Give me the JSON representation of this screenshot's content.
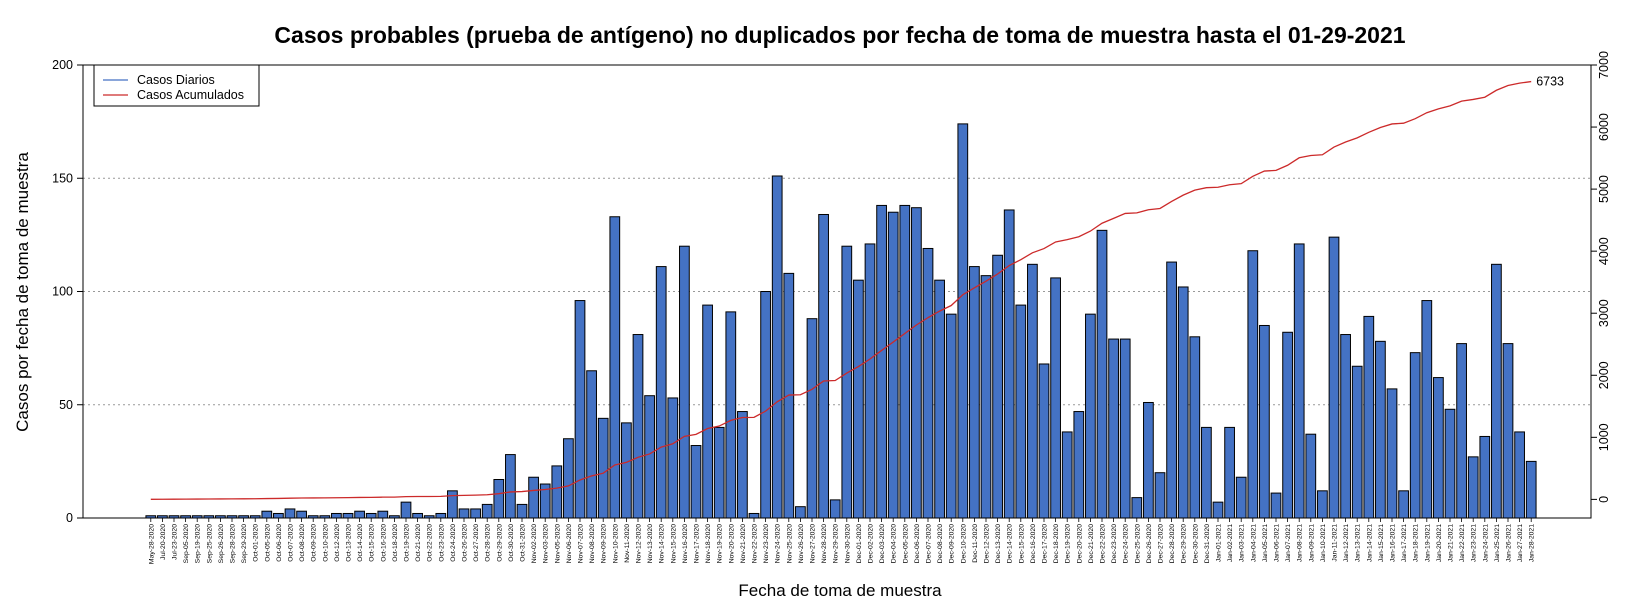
{
  "chart_data": {
    "type": "bar",
    "title": "Casos probables (prueba de antígeno) no duplicados por fecha de toma de muestra hasta el 01-29-2021",
    "xlabel": "Fecha de toma de muestra",
    "ylabel": "Casos por fecha de toma de muestra",
    "ylim": [
      0,
      200
    ],
    "y_ticks": [
      0,
      50,
      100,
      150,
      200
    ],
    "y2lim": [
      -300,
      7000
    ],
    "y2_ticks": [
      0,
      1000,
      2000,
      3000,
      4000,
      5000,
      6000,
      7000
    ],
    "grid": "horizontal dotted",
    "legend_position": "top-left",
    "final_cumulative_label": "6733",
    "categories": [
      "May-28-2020",
      "Jul-20-2020",
      "Jul-23-2020",
      "Sep-05-2020",
      "Sep-19-2020",
      "Sep-25-2020",
      "Sep-26-2020",
      "Sep-28-2020",
      "Sep-29-2020",
      "Oct-01-2020",
      "Oct-05-2020",
      "Oct-06-2020",
      "Oct-07-2020",
      "Oct-08-2020",
      "Oct-09-2020",
      "Oct-10-2020",
      "Oct-12-2020",
      "Oct-13-2020",
      "Oct-14-2020",
      "Oct-15-2020",
      "Oct-16-2020",
      "Oct-18-2020",
      "Oct-19-2020",
      "Oct-21-2020",
      "Oct-22-2020",
      "Oct-23-2020",
      "Oct-24-2020",
      "Oct-26-2020",
      "Oct-27-2020",
      "Oct-28-2020",
      "Oct-29-2020",
      "Oct-30-2020",
      "Oct-31-2020",
      "Nov-02-2020",
      "Nov-03-2020",
      "Nov-05-2020",
      "Nov-06-2020",
      "Nov-07-2020",
      "Nov-08-2020",
      "Nov-09-2020",
      "Nov-10-2020",
      "Nov-11-2020",
      "Nov-12-2020",
      "Nov-13-2020",
      "Nov-14-2020",
      "Nov-15-2020",
      "Nov-16-2020",
      "Nov-17-2020",
      "Nov-18-2020",
      "Nov-19-2020",
      "Nov-20-2020",
      "Nov-21-2020",
      "Nov-22-2020",
      "Nov-23-2020",
      "Nov-24-2020",
      "Nov-25-2020",
      "Nov-26-2020",
      "Nov-27-2020",
      "Nov-28-2020",
      "Nov-29-2020",
      "Nov-30-2020",
      "Dec-01-2020",
      "Dec-02-2020",
      "Dec-03-2020",
      "Dec-04-2020",
      "Dec-05-2020",
      "Dec-06-2020",
      "Dec-07-2020",
      "Dec-08-2020",
      "Dec-09-2020",
      "Dec-10-2020",
      "Dec-11-2020",
      "Dec-12-2020",
      "Dec-13-2020",
      "Dec-14-2020",
      "Dec-15-2020",
      "Dec-16-2020",
      "Dec-17-2020",
      "Dec-18-2020",
      "Dec-19-2020",
      "Dec-20-2020",
      "Dec-21-2020",
      "Dec-22-2020",
      "Dec-23-2020",
      "Dec-24-2020",
      "Dec-25-2020",
      "Dec-26-2020",
      "Dec-27-2020",
      "Dec-28-2020",
      "Dec-29-2020",
      "Dec-30-2020",
      "Dec-31-2020",
      "Jan-01-2021",
      "Jan-02-2021",
      "Jan-03-2021",
      "Jan-04-2021",
      "Jan-05-2021",
      "Jan-06-2021",
      "Jan-07-2021",
      "Jan-08-2021",
      "Jan-09-2021",
      "Jan-10-2021",
      "Jan-11-2021",
      "Jan-12-2021",
      "Jan-13-2021",
      "Jan-14-2021",
      "Jan-15-2021",
      "Jan-16-2021",
      "Jan-17-2021",
      "Jan-18-2021",
      "Jan-19-2021",
      "Jan-20-2021",
      "Jan-21-2021",
      "Jan-22-2021",
      "Jan-23-2021",
      "Jan-24-2021",
      "Jan-25-2021",
      "Jan-26-2021",
      "Jan-27-2021",
      "Jan-28-2021"
    ],
    "series": [
      {
        "name": "Casos Diarios",
        "color": "#4472c4",
        "values": [
          1,
          1,
          1,
          1,
          1,
          1,
          1,
          1,
          1,
          1,
          3,
          2,
          4,
          3,
          1,
          1,
          2,
          2,
          3,
          2,
          3,
          1,
          7,
          2,
          1,
          2,
          12,
          4,
          4,
          6,
          17,
          28,
          6,
          18,
          15,
          23,
          35,
          96,
          65,
          44,
          133,
          42,
          81,
          54,
          111,
          53,
          120,
          32,
          94,
          40,
          91,
          47,
          2,
          100,
          151,
          108,
          5,
          88,
          134,
          8,
          120,
          105,
          121,
          138,
          135,
          138,
          137,
          119,
          105,
          90,
          174,
          111,
          107,
          116,
          136,
          94,
          112,
          68,
          106,
          38,
          47,
          90,
          127,
          79,
          79,
          9,
          51,
          20,
          113,
          102,
          80,
          40,
          7,
          40,
          18,
          118,
          85,
          11,
          82,
          121,
          37,
          12,
          124,
          81,
          67,
          89,
          78,
          57,
          12,
          73,
          96,
          62,
          48,
          77,
          27,
          36,
          112,
          77,
          38,
          25
        ]
      },
      {
        "name": "Casos Acumulados",
        "color": "#cc2a2a",
        "values": "cumulative"
      }
    ]
  }
}
